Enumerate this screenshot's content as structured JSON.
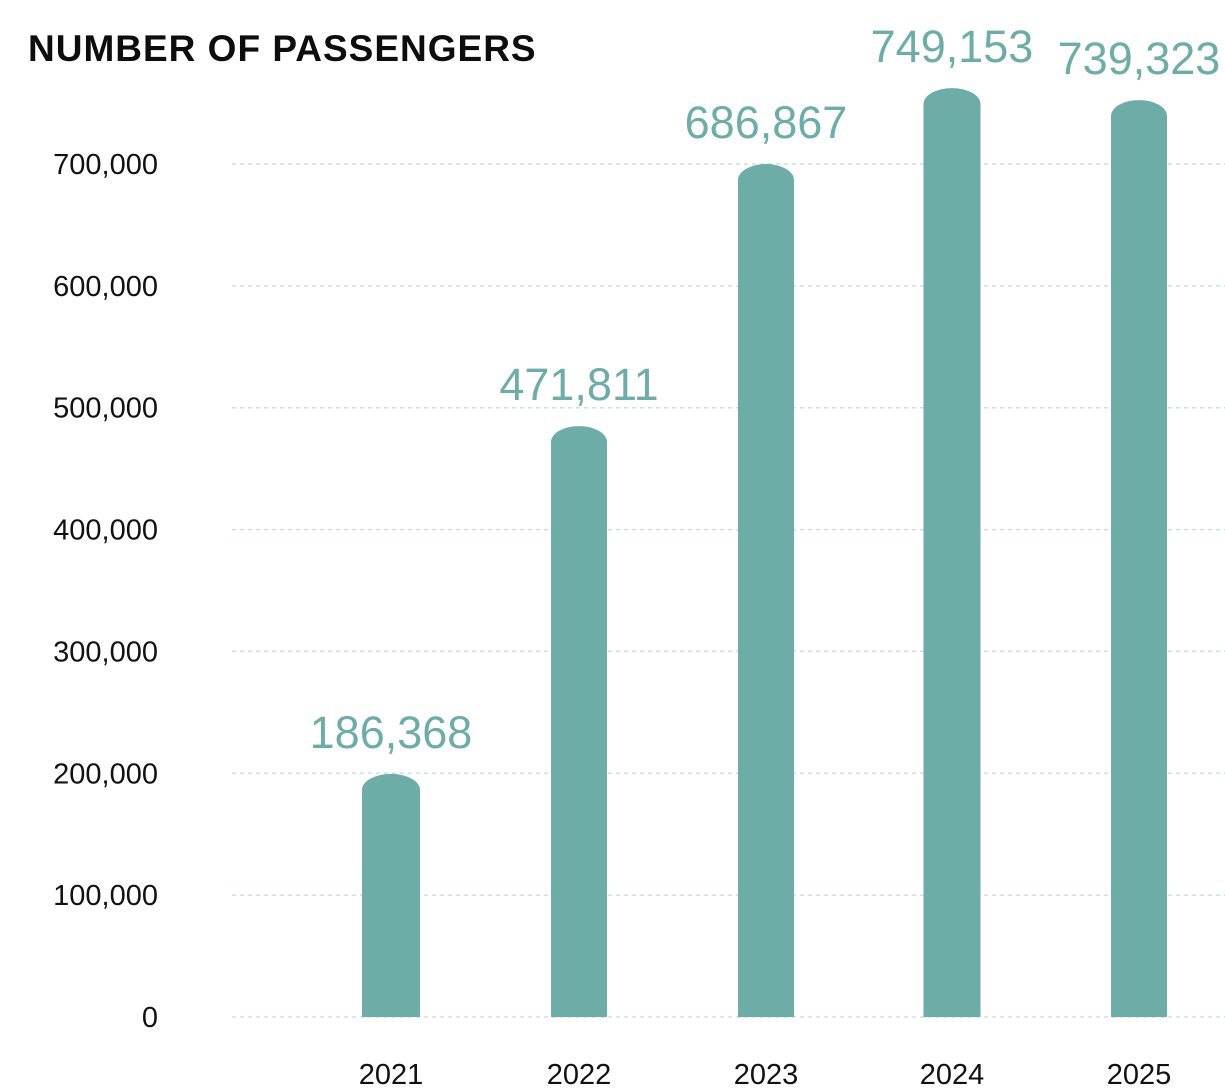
{
  "chart_data": {
    "type": "bar",
    "title": "NUMBER OF PASSENGERS",
    "xlabel": "",
    "ylabel": "",
    "categories": [
      "2021",
      "2022",
      "2023",
      "2024",
      "2025"
    ],
    "values": [
      186368,
      471811,
      686867,
      749153,
      739323
    ],
    "data_labels": [
      "186,368",
      "471,811",
      "686,867",
      "749,153",
      "739,323"
    ],
    "yticks": [
      0,
      100000,
      200000,
      300000,
      400000,
      500000,
      600000,
      700000
    ],
    "ytick_labels": [
      "0",
      "100,000",
      "200,000",
      "300,000",
      "400,000",
      "500,000",
      "600,000",
      "700,000"
    ],
    "ylim": [
      0,
      700000
    ],
    "grid": true,
    "grid_style": "dashed",
    "legend": "none",
    "bar_color": "#6eaca8",
    "grid_color": "#c9e2df",
    "label_color": "#6eaca8"
  }
}
